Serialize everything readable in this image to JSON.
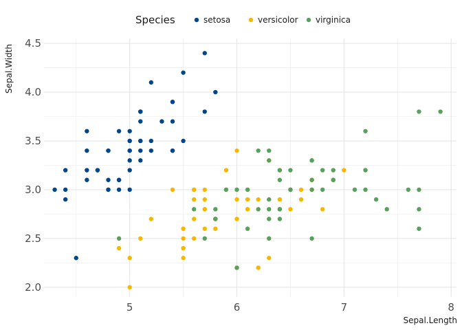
{
  "chart_data": {
    "type": "scatter",
    "xlabel": "Sepal.Length",
    "ylabel": "Sepal.Width",
    "xlim": [
      4.2,
      8.05
    ],
    "ylim": [
      1.9,
      4.55
    ],
    "x_ticks": [
      5,
      6,
      7,
      8
    ],
    "y_ticks": [
      2.0,
      2.5,
      3.0,
      3.5,
      4.0,
      4.5
    ],
    "x_tick_labels": [
      "5",
      "6",
      "7",
      "8"
    ],
    "y_tick_labels": [
      "2.0",
      "2.5",
      "3.0",
      "3.5",
      "4.0",
      "4.5"
    ],
    "grid": true,
    "legend": {
      "title": "Species",
      "position": "top"
    },
    "series": [
      {
        "name": "setosa",
        "color": "#00468b",
        "points": [
          [
            5.1,
            3.5
          ],
          [
            4.9,
            3.0
          ],
          [
            4.7,
            3.2
          ],
          [
            4.6,
            3.1
          ],
          [
            5.0,
            3.6
          ],
          [
            5.4,
            3.9
          ],
          [
            4.6,
            3.4
          ],
          [
            5.0,
            3.4
          ],
          [
            4.4,
            2.9
          ],
          [
            4.9,
            3.1
          ],
          [
            5.4,
            3.7
          ],
          [
            4.8,
            3.4
          ],
          [
            4.8,
            3.0
          ],
          [
            4.3,
            3.0
          ],
          [
            5.8,
            4.0
          ],
          [
            5.7,
            4.4
          ],
          [
            5.4,
            3.9
          ],
          [
            5.1,
            3.5
          ],
          [
            5.7,
            3.8
          ],
          [
            5.1,
            3.8
          ],
          [
            5.4,
            3.4
          ],
          [
            5.1,
            3.7
          ],
          [
            4.6,
            3.6
          ],
          [
            5.1,
            3.3
          ],
          [
            4.8,
            3.4
          ],
          [
            5.0,
            3.0
          ],
          [
            5.0,
            3.4
          ],
          [
            5.2,
            3.5
          ],
          [
            5.2,
            3.4
          ],
          [
            4.7,
            3.2
          ],
          [
            4.8,
            3.1
          ],
          [
            5.4,
            3.4
          ],
          [
            5.2,
            4.1
          ],
          [
            5.5,
            4.2
          ],
          [
            4.9,
            3.1
          ],
          [
            5.0,
            3.2
          ],
          [
            5.5,
            3.5
          ],
          [
            4.9,
            3.6
          ],
          [
            4.4,
            3.0
          ],
          [
            5.1,
            3.4
          ],
          [
            5.0,
            3.5
          ],
          [
            4.5,
            2.3
          ],
          [
            4.4,
            3.2
          ],
          [
            5.0,
            3.5
          ],
          [
            5.1,
            3.8
          ],
          [
            4.8,
            3.0
          ],
          [
            5.1,
            3.8
          ],
          [
            4.6,
            3.2
          ],
          [
            5.3,
            3.7
          ],
          [
            5.0,
            3.3
          ]
        ]
      },
      {
        "name": "versicolor",
        "color": "#f5b800",
        "points": [
          [
            7.0,
            3.2
          ],
          [
            6.4,
            3.2
          ],
          [
            6.9,
            3.1
          ],
          [
            5.5,
            2.3
          ],
          [
            6.5,
            2.8
          ],
          [
            5.7,
            2.8
          ],
          [
            6.3,
            3.3
          ],
          [
            4.9,
            2.4
          ],
          [
            6.6,
            2.9
          ],
          [
            5.2,
            2.7
          ],
          [
            5.0,
            2.0
          ],
          [
            5.9,
            3.0
          ],
          [
            6.0,
            2.2
          ],
          [
            6.1,
            2.9
          ],
          [
            5.6,
            2.9
          ],
          [
            6.7,
            3.1
          ],
          [
            5.6,
            3.0
          ],
          [
            5.8,
            2.7
          ],
          [
            6.2,
            2.2
          ],
          [
            5.6,
            2.5
          ],
          [
            5.9,
            3.2
          ],
          [
            6.1,
            2.8
          ],
          [
            6.3,
            2.5
          ],
          [
            6.1,
            2.8
          ],
          [
            6.4,
            2.9
          ],
          [
            6.6,
            3.0
          ],
          [
            6.8,
            2.8
          ],
          [
            6.7,
            3.0
          ],
          [
            6.0,
            2.9
          ],
          [
            5.7,
            2.6
          ],
          [
            5.5,
            2.4
          ],
          [
            5.5,
            2.4
          ],
          [
            5.8,
            2.7
          ],
          [
            6.0,
            2.7
          ],
          [
            5.4,
            3.0
          ],
          [
            6.0,
            3.4
          ],
          [
            6.7,
            3.1
          ],
          [
            6.3,
            2.3
          ],
          [
            5.6,
            3.0
          ],
          [
            5.5,
            2.5
          ],
          [
            5.5,
            2.6
          ],
          [
            6.1,
            3.0
          ],
          [
            5.8,
            2.6
          ],
          [
            5.0,
            2.3
          ],
          [
            5.6,
            2.7
          ],
          [
            5.7,
            3.0
          ],
          [
            5.7,
            2.9
          ],
          [
            6.2,
            2.9
          ],
          [
            5.1,
            2.5
          ],
          [
            5.7,
            2.8
          ]
        ]
      },
      {
        "name": "virginica",
        "color": "#58a05c",
        "points": [
          [
            6.3,
            3.3
          ],
          [
            5.8,
            2.7
          ],
          [
            7.1,
            3.0
          ],
          [
            6.3,
            2.9
          ],
          [
            6.5,
            3.0
          ],
          [
            7.6,
            3.0
          ],
          [
            4.9,
            2.5
          ],
          [
            7.3,
            2.9
          ],
          [
            6.7,
            2.5
          ],
          [
            7.2,
            3.6
          ],
          [
            6.5,
            3.2
          ],
          [
            6.4,
            2.7
          ],
          [
            6.8,
            3.0
          ],
          [
            5.7,
            2.5
          ],
          [
            5.8,
            2.8
          ],
          [
            6.4,
            3.2
          ],
          [
            6.5,
            3.0
          ],
          [
            7.7,
            3.8
          ],
          [
            7.7,
            2.6
          ],
          [
            6.0,
            2.2
          ],
          [
            6.9,
            3.2
          ],
          [
            5.6,
            2.8
          ],
          [
            7.7,
            2.8
          ],
          [
            6.3,
            2.7
          ],
          [
            6.7,
            3.3
          ],
          [
            7.2,
            3.2
          ],
          [
            6.2,
            2.8
          ],
          [
            6.1,
            3.0
          ],
          [
            6.4,
            2.8
          ],
          [
            7.2,
            3.0
          ],
          [
            7.4,
            2.8
          ],
          [
            7.9,
            3.8
          ],
          [
            6.4,
            2.8
          ],
          [
            6.3,
            2.8
          ],
          [
            6.1,
            2.6
          ],
          [
            7.7,
            3.0
          ],
          [
            6.3,
            3.4
          ],
          [
            6.4,
            3.1
          ],
          [
            6.0,
            3.0
          ],
          [
            6.9,
            3.1
          ],
          [
            6.7,
            3.1
          ],
          [
            6.9,
            3.1
          ],
          [
            5.8,
            2.7
          ],
          [
            6.8,
            3.2
          ],
          [
            6.7,
            3.3
          ],
          [
            6.7,
            3.0
          ],
          [
            6.3,
            2.5
          ],
          [
            6.5,
            3.0
          ],
          [
            6.2,
            3.4
          ],
          [
            5.9,
            3.0
          ]
        ]
      }
    ]
  }
}
